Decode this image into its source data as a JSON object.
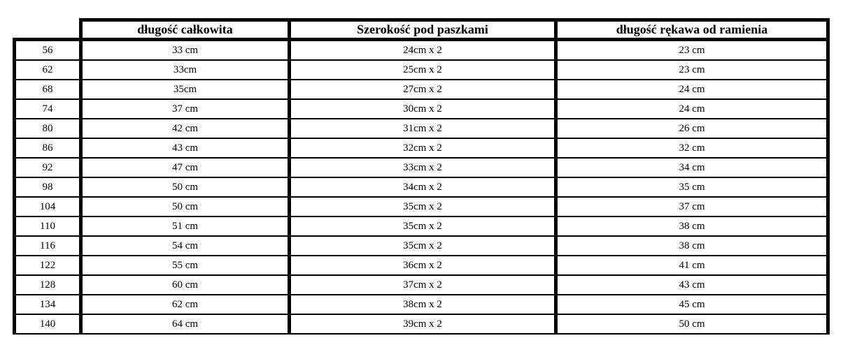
{
  "colors": {
    "background": "#ffffff",
    "border": "#000000",
    "text": "#000000"
  },
  "table": {
    "headers": {
      "corner": "",
      "total_length": "długość całkowita",
      "width_under_arms": "Szerokość pod paszkami",
      "sleeve_from_shoulder": "długość rękawa od ramienia"
    },
    "rows": [
      {
        "size": "56",
        "total_length": "33 cm",
        "width_under_arms": "24cm x 2",
        "sleeve_from_shoulder": "23 cm"
      },
      {
        "size": "62",
        "total_length": "33cm",
        "width_under_arms": "25cm x 2",
        "sleeve_from_shoulder": "23 cm"
      },
      {
        "size": "68",
        "total_length": "35cm",
        "width_under_arms": "27cm x 2",
        "sleeve_from_shoulder": "24 cm"
      },
      {
        "size": "74",
        "total_length": "37 cm",
        "width_under_arms": "30cm x 2",
        "sleeve_from_shoulder": "24 cm"
      },
      {
        "size": "80",
        "total_length": "42 cm",
        "width_under_arms": "31cm x 2",
        "sleeve_from_shoulder": "26 cm"
      },
      {
        "size": "86",
        "total_length": "43 cm",
        "width_under_arms": "32cm x 2",
        "sleeve_from_shoulder": "32 cm"
      },
      {
        "size": "92",
        "total_length": "47 cm",
        "width_under_arms": "33cm x 2",
        "sleeve_from_shoulder": "34 cm"
      },
      {
        "size": "98",
        "total_length": "50 cm",
        "width_under_arms": "34cm x 2",
        "sleeve_from_shoulder": "35 cm"
      },
      {
        "size": "104",
        "total_length": "50 cm",
        "width_under_arms": "35cm x 2",
        "sleeve_from_shoulder": "37 cm"
      },
      {
        "size": "110",
        "total_length": "51 cm",
        "width_under_arms": "35cm x 2",
        "sleeve_from_shoulder": "38 cm"
      },
      {
        "size": "116",
        "total_length": "54 cm",
        "width_under_arms": "35cm x 2",
        "sleeve_from_shoulder": "38 cm"
      },
      {
        "size": "122",
        "total_length": "55 cm",
        "width_under_arms": "36cm x 2",
        "sleeve_from_shoulder": "41 cm"
      },
      {
        "size": "128",
        "total_length": "60 cm",
        "width_under_arms": "37cm x 2",
        "sleeve_from_shoulder": "43 cm"
      },
      {
        "size": "134",
        "total_length": "62 cm",
        "width_under_arms": "38cm x 2",
        "sleeve_from_shoulder": "45 cm"
      },
      {
        "size": "140",
        "total_length": "64 cm",
        "width_under_arms": "39cm x 2",
        "sleeve_from_shoulder": "50 cm"
      }
    ]
  }
}
